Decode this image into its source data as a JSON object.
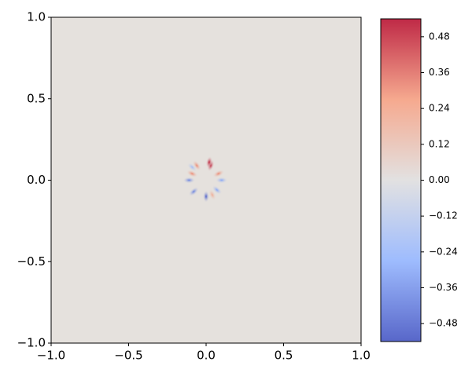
{
  "chart_data": {
    "type": "contour",
    "xlim": [
      -1,
      1
    ],
    "ylim": [
      -1,
      1
    ],
    "xticks": [
      {
        "value": -1,
        "label": "−1.0"
      },
      {
        "value": -0.5,
        "label": "−0.5"
      },
      {
        "value": 0,
        "label": "0.0"
      },
      0.5,
      {
        "value": 1,
        "label": "1.0"
      }
    ],
    "yticks": [
      {
        "value": -1,
        "label": "−1.0"
      },
      {
        "value": -0.5,
        "label": "−0.5"
      },
      {
        "value": 0,
        "label": "0.0"
      },
      0.5,
      {
        "value": 1,
        "label": "1.0"
      }
    ],
    "colormap": "coolwarm",
    "clim": [
      -0.54,
      0.54
    ],
    "cticks": [
      {
        "value": -0.48,
        "label": "−0.48"
      },
      {
        "value": -0.36,
        "label": "−0.36"
      },
      {
        "value": -0.24,
        "label": "−0.24"
      },
      {
        "value": -0.12,
        "label": "−0.12"
      },
      {
        "value": 0,
        "label": "0.00"
      },
      0.12,
      0.24,
      0.36,
      0.48
    ],
    "features": [
      {
        "x": 0.03,
        "y": 0.09,
        "value": 0.5
      },
      {
        "x": 0.02,
        "y": 0.11,
        "value": 0.5
      },
      {
        "x": -0.06,
        "y": 0.09,
        "value": 0.3
      },
      {
        "x": 0.08,
        "y": 0.04,
        "value": 0.3
      },
      {
        "x": 0.1,
        "y": 0,
        "value": -0.3
      },
      {
        "x": -0.11,
        "y": 0,
        "value": -0.4
      },
      {
        "x": -0.09,
        "y": 0.04,
        "value": 0.3
      },
      {
        "x": -0.08,
        "y": -0.07,
        "value": -0.4
      },
      {
        "x": 0,
        "y": -0.1,
        "value": -0.5
      },
      {
        "x": 0.04,
        "y": -0.09,
        "value": 0.2
      },
      {
        "x": 0.07,
        "y": -0.06,
        "value": -0.3
      },
      {
        "x": -0.09,
        "y": 0.08,
        "value": -0.2
      }
    ]
  }
}
